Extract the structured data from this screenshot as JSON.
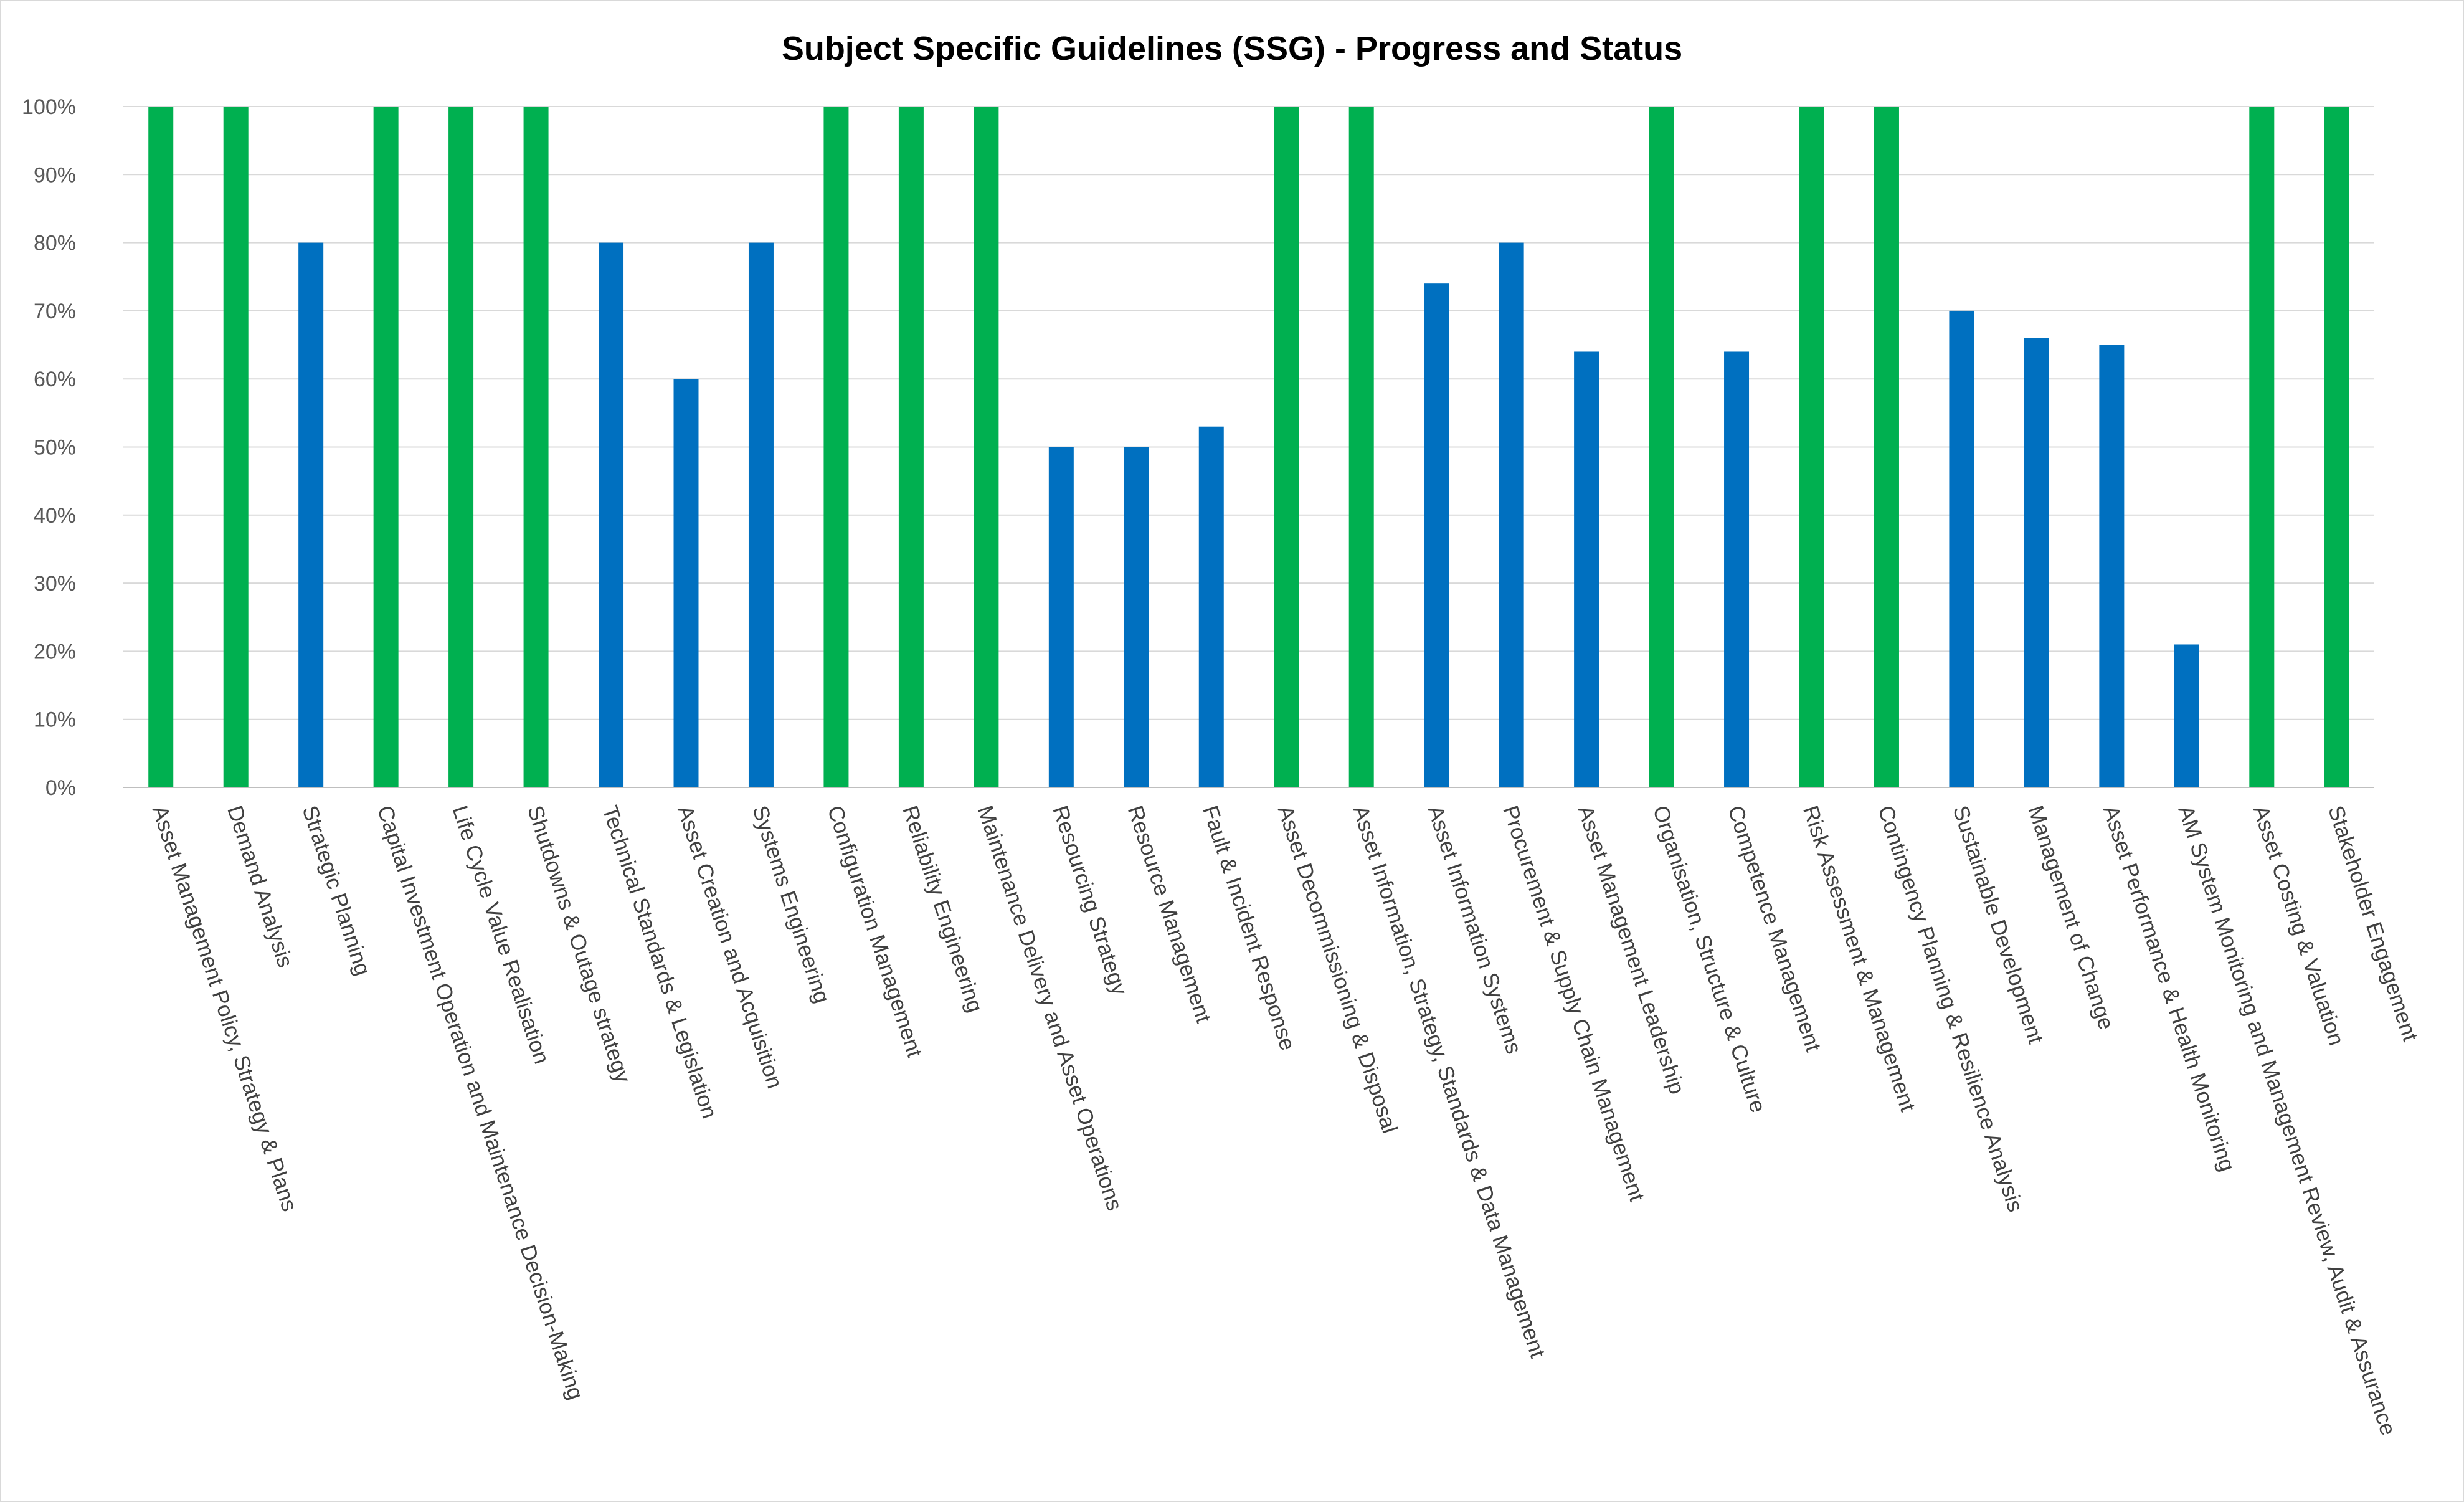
{
  "chart_data": {
    "type": "bar",
    "title": "Subject Specific Guidelines (SSG) - Progress and Status",
    "xlabel": "",
    "ylabel": "",
    "ylim": [
      0,
      1
    ],
    "yticks": [
      "0%",
      "10%",
      "20%",
      "30%",
      "40%",
      "50%",
      "60%",
      "70%",
      "80%",
      "90%",
      "100%"
    ],
    "grid": true,
    "legend": "none",
    "colors": {
      "complete": "#00b050",
      "in_progress": "#0070c0"
    },
    "categories": [
      "Asset Management Policy, Strategy & Plans",
      "Demand Analysis",
      "Strategic Planning",
      "Capital Investment Operation and Maintenance Decision-Making",
      "Life Cycle Value Realisation",
      "Shutdowns & Outage strategy",
      "Technical Standards & Legislation",
      "Asset Creation and Acquisition",
      "Systems Engineering",
      "Configuration Management",
      "Reliability Engineering",
      "Maintenance Delivery and Asset Operations",
      "Resourcing Strategy",
      "Resource Management",
      "Fault & Incident Response",
      "Asset Decommissioning & Disposal",
      "Asset Information, Strategy, Standards & Data Management",
      "Asset Information Systems",
      "Procurement & Supply Chain Management",
      "Asset Management Leadership",
      "Organisation, Structure & Culture",
      "Competence Management",
      "Risk Assessment & Management",
      "Contingency Planning & Resilience Analysis",
      "Sustainable Development",
      "Management of Change",
      "Asset Performance & Health Monitoring",
      "AM System Monitoring and Management Review, Audit & Assurance",
      "Asset Costing & Valuation",
      "Stakeholder Engagement"
    ],
    "values": [
      1.0,
      1.0,
      0.8,
      1.0,
      1.0,
      1.0,
      0.8,
      0.6,
      0.8,
      1.0,
      1.0,
      1.0,
      0.5,
      0.5,
      0.53,
      1.0,
      1.0,
      0.74,
      0.8,
      0.64,
      1.0,
      0.64,
      1.0,
      1.0,
      0.7,
      0.66,
      0.65,
      0.21,
      1.0,
      1.0
    ]
  }
}
